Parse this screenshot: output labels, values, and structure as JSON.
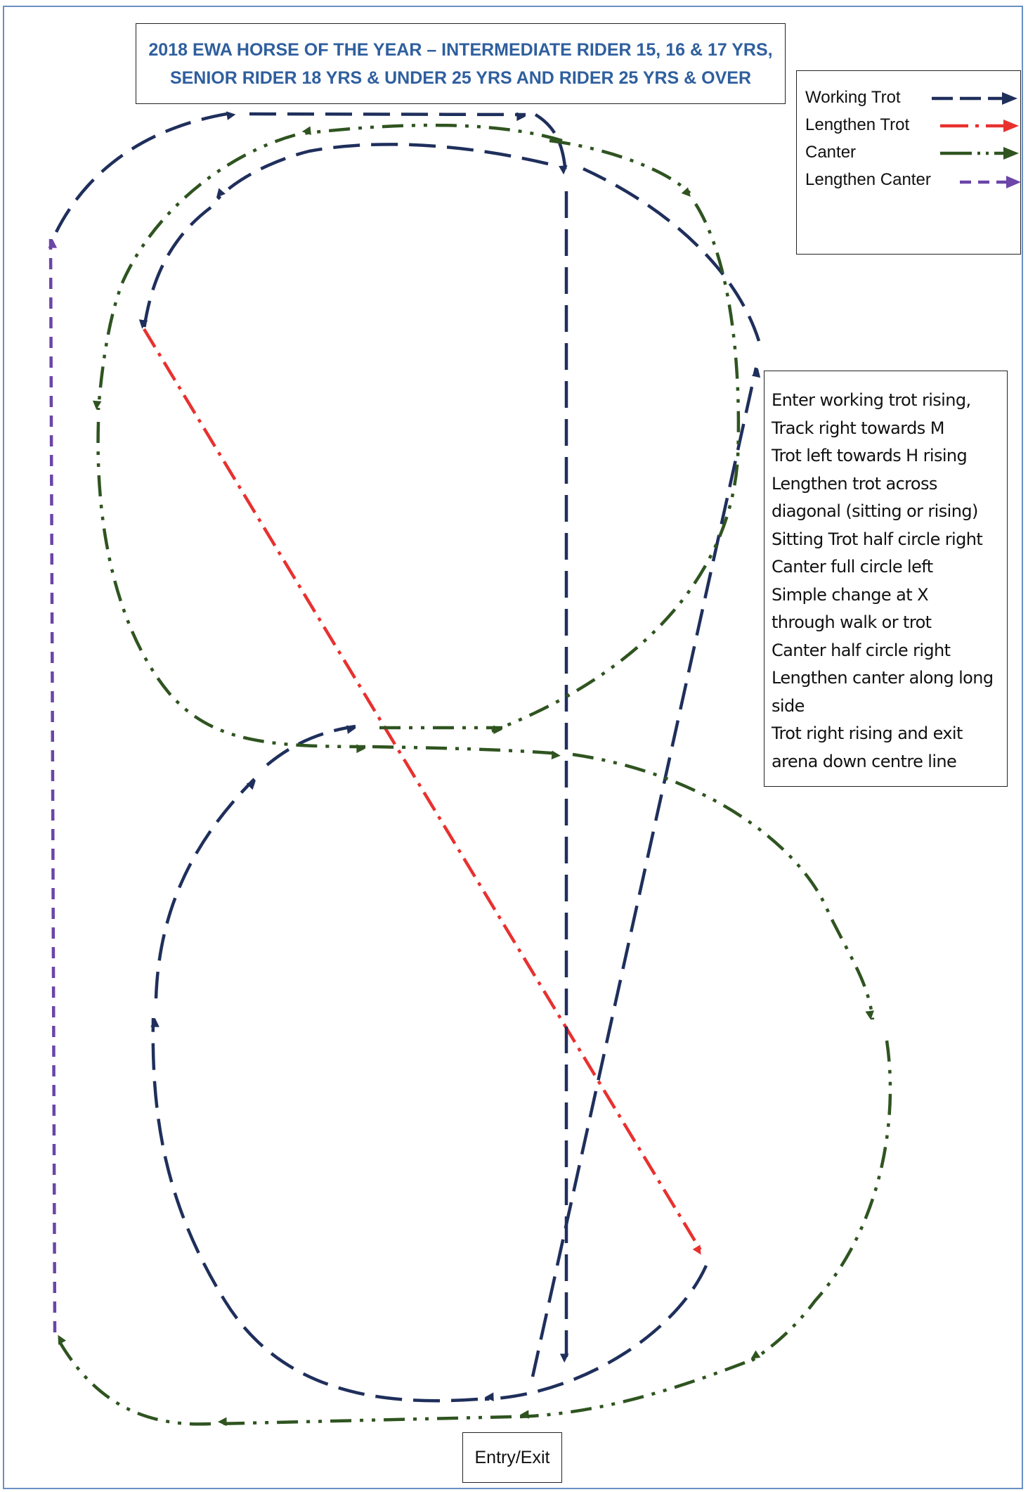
{
  "title": {
    "line1": "2018 EWA HORSE OF THE YEAR – INTERMEDIATE RIDER 15, 16 & 17 YRS,",
    "line2": "SENIOR RIDER 18 YRS & UNDER 25 YRS AND RIDER 25 YRS & OVER"
  },
  "legend": [
    {
      "label": "Working Trot",
      "color": "#1f2f5c",
      "pattern": "long-dash"
    },
    {
      "label": "Lengthen Trot",
      "color": "#e8312f",
      "pattern": "dash-dot"
    },
    {
      "label": "Canter",
      "color": "#2f5420",
      "pattern": "dash-dot-dot"
    },
    {
      "label": "Lengthen Canter",
      "color": "#6b45a8",
      "pattern": "short-dash"
    }
  ],
  "steps": [
    "Enter working trot rising,",
    "Track right towards M",
    "Trot left towards H rising",
    "Lengthen trot across",
    "diagonal (sitting or rising)",
    "Sitting Trot half circle right",
    "Canter full circle left",
    "Simple change at X",
    "through walk or trot",
    "Canter half circle right",
    "Lengthen canter along long",
    "side",
    "Trot right rising and exit",
    "arena down centre line"
  ],
  "entry_exit": "Entry/Exit",
  "colors": {
    "working_trot": "#1f2f5c",
    "lengthen_trot": "#e8312f",
    "canter": "#2f5420",
    "lengthen_canter": "#6b45a8",
    "title": "#2f5f9e",
    "frame": "#6a8fc4"
  }
}
